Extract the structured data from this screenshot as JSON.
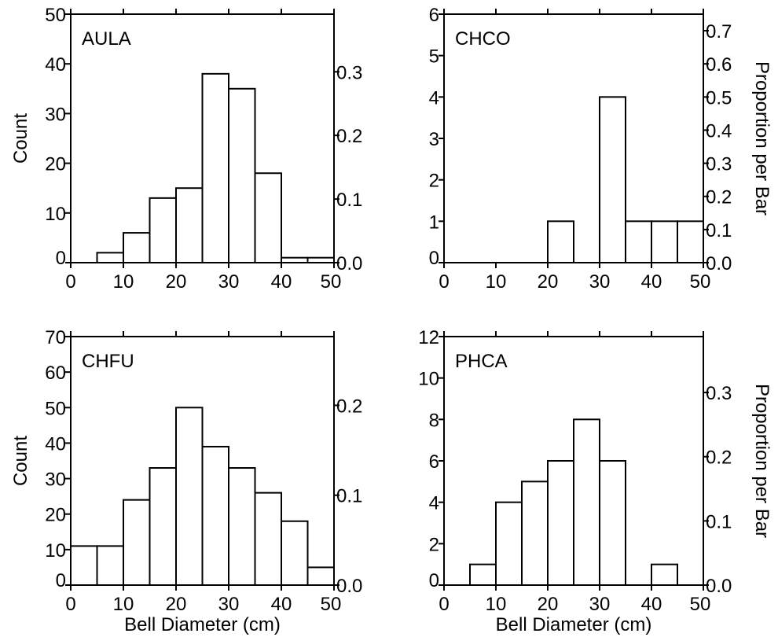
{
  "figure": {
    "left_ylabel": "Count",
    "right_ylabel": "Proportion per Bar",
    "xlabel": "Bell Diameter (cm)"
  },
  "chart_data": [
    {
      "type": "bar",
      "title": "AULA",
      "bin_edges": [
        0,
        5,
        10,
        15,
        20,
        25,
        30,
        35,
        40,
        45,
        50
      ],
      "values": [
        0,
        2,
        6,
        13,
        15,
        38,
        35,
        18,
        1,
        1
      ],
      "xlim": [
        0,
        50
      ],
      "ylim": [
        0,
        50
      ],
      "x_ticks": [
        "0",
        "10",
        "20",
        "30",
        "40",
        "50"
      ],
      "y_ticks": [
        "0",
        "10",
        "20",
        "30",
        "40",
        "50"
      ],
      "y2_ticks": [
        "0.0",
        "0.1",
        "0.2",
        "0.3"
      ],
      "y2_tick_values": [
        0.0,
        0.1,
        0.2,
        0.3
      ],
      "y2_max": 0.3906,
      "ylabel": "Count",
      "y2label": "",
      "xlabel": ""
    },
    {
      "type": "bar",
      "title": "CHCO",
      "bin_edges": [
        0,
        5,
        10,
        15,
        20,
        25,
        30,
        35,
        40,
        45,
        50
      ],
      "values": [
        0,
        0,
        0,
        0,
        1,
        0,
        4,
        1,
        1,
        1
      ],
      "xlim": [
        0,
        50
      ],
      "ylim": [
        0,
        6
      ],
      "x_ticks": [
        "0",
        "10",
        "20",
        "30",
        "40",
        "50"
      ],
      "y_ticks": [
        "0",
        "1",
        "2",
        "3",
        "4",
        "5",
        "6"
      ],
      "y2_ticks": [
        "0.0",
        "0.1",
        "0.2",
        "0.3",
        "0.4",
        "0.5",
        "0.6",
        "0.7"
      ],
      "y2_tick_values": [
        0.0,
        0.1,
        0.2,
        0.3,
        0.4,
        0.5,
        0.6,
        0.7
      ],
      "y2_max": 0.75,
      "ylabel": "",
      "y2label": "Proportion per Bar",
      "xlabel": ""
    },
    {
      "type": "bar",
      "title": "CHFU",
      "bin_edges": [
        0,
        5,
        10,
        15,
        20,
        25,
        30,
        35,
        40,
        45,
        50
      ],
      "values": [
        11,
        11,
        24,
        33,
        50,
        39,
        33,
        26,
        18,
        5
      ],
      "xlim": [
        0,
        50
      ],
      "ylim": [
        0,
        70
      ],
      "x_ticks": [
        "0",
        "10",
        "20",
        "30",
        "40",
        "50"
      ],
      "y_ticks": [
        "0",
        "10",
        "20",
        "30",
        "40",
        "50",
        "60",
        "70"
      ],
      "y2_ticks": [
        "0.0",
        "0.1",
        "0.2"
      ],
      "y2_tick_values": [
        0.0,
        0.1,
        0.2
      ],
      "y2_max": 0.2765,
      "ylabel": "Count",
      "y2label": "",
      "xlabel": "Bell Diameter (cm)"
    },
    {
      "type": "bar",
      "title": "PHCA",
      "bin_edges": [
        0,
        5,
        10,
        15,
        20,
        25,
        30,
        35,
        40,
        45,
        50
      ],
      "values": [
        0,
        1,
        4,
        5,
        6,
        8,
        6,
        0,
        1,
        0
      ],
      "xlim": [
        0,
        50
      ],
      "ylim": [
        0,
        12
      ],
      "x_ticks": [
        "0",
        "10",
        "20",
        "30",
        "40",
        "50"
      ],
      "y_ticks": [
        "0",
        "2",
        "4",
        "6",
        "8",
        "10",
        "12"
      ],
      "y2_ticks": [
        "0.0",
        "0.1",
        "0.2",
        "0.3"
      ],
      "y2_tick_values": [
        0.0,
        0.1,
        0.2,
        0.3
      ],
      "y2_max": 0.3871,
      "ylabel": "",
      "y2label": "Proportion per Bar",
      "xlabel": "Bell Diameter (cm)"
    }
  ]
}
